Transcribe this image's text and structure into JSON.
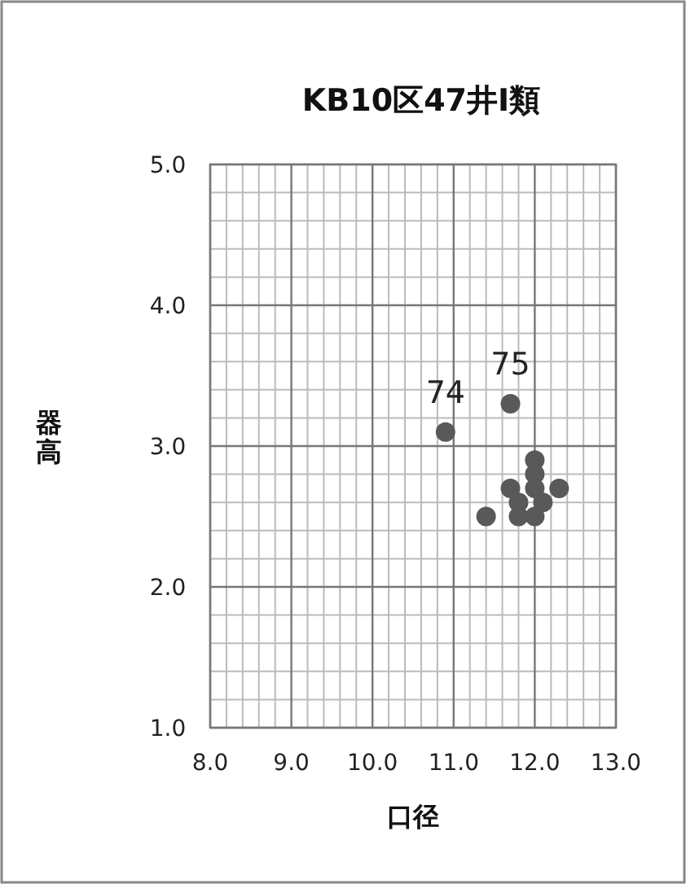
{
  "chart_data": {
    "type": "scatter",
    "title": "KB10区47井Ⅰ類",
    "xlabel": "口径",
    "ylabel": "器高",
    "x": [
      10.9,
      11.7,
      12.0,
      12.0,
      12.0,
      11.7,
      12.3,
      11.8,
      12.1,
      11.4,
      11.8,
      12.0
    ],
    "series": [
      {
        "color": "#595959",
        "values": [
          3.1,
          3.3,
          2.9,
          2.8,
          2.7,
          2.7,
          2.7,
          2.6,
          2.6,
          2.5,
          2.5,
          2.5
        ]
      }
    ],
    "annotations": [
      {
        "text": "74",
        "x": 10.9,
        "y": 3.1
      },
      {
        "text": "75",
        "x": 11.7,
        "y": 3.3
      }
    ],
    "xlim": [
      8.0,
      13.0
    ],
    "xticks": [
      {
        "value": 8,
        "label": "8.0"
      },
      {
        "value": 9,
        "label": "9.0"
      },
      {
        "value": 10,
        "label": "10.0"
      },
      {
        "value": 11,
        "label": "11.0"
      },
      {
        "value": 12,
        "label": "12.0"
      },
      {
        "value": 13,
        "label": "13.0"
      }
    ],
    "ylim": [
      1.0,
      5.0
    ],
    "yticks": [
      {
        "value": 1,
        "label": "1.0"
      },
      {
        "value": 2,
        "label": "2.0"
      },
      {
        "value": 3,
        "label": "3.0"
      },
      {
        "value": 4,
        "label": "4.0"
      },
      {
        "value": 5,
        "label": "5.0"
      }
    ],
    "grid": true,
    "marker": "circle"
  }
}
